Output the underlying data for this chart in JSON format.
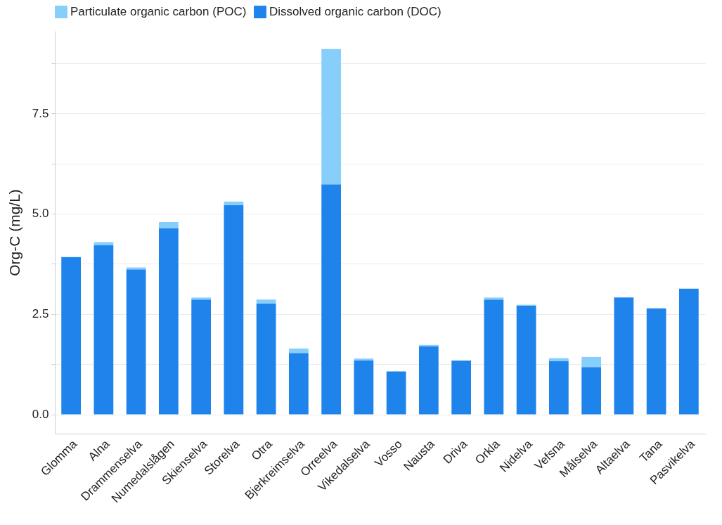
{
  "chart_data": {
    "type": "bar",
    "stacked": true,
    "ylabel": "Org-C (mg/L)",
    "categories": [
      "Glomma",
      "Alna",
      "Drammenselva",
      "Numedalslågen",
      "Skienselva",
      "Storelva",
      "Otra",
      "Bjerkreimselva",
      "Orreelva",
      "Vikedalselva",
      "Vosso",
      "Nausta",
      "Driva",
      "Orkla",
      "Nidelva",
      "Vefsna",
      "Målselva",
      "Altaelva",
      "Tana",
      "Pasvikelva"
    ],
    "series": [
      {
        "name": "Dissolved organic carbon (DOC)",
        "color": "#1e84ec",
        "values": [
          3.92,
          4.21,
          3.61,
          4.64,
          2.86,
          5.21,
          2.76,
          1.53,
          5.73,
          1.34,
          1.07,
          1.7,
          1.34,
          2.86,
          2.71,
          1.33,
          1.18,
          2.91,
          2.64,
          3.13
        ]
      },
      {
        "name": "Particulate organic carbon (POC)",
        "color": "#87cefa",
        "values": [
          0,
          0.08,
          0.05,
          0.15,
          0.05,
          0.09,
          0.1,
          0.11,
          3.37,
          0.05,
          0,
          0.03,
          0,
          0.05,
          0.02,
          0.07,
          0.25,
          0,
          0,
          0
        ]
      }
    ],
    "ylim": [
      -0.48,
      9.55
    ],
    "yticks": [
      {
        "value": 0,
        "label": "0.0"
      },
      {
        "value": 1.25,
        "label": null
      },
      {
        "value": 2.5,
        "label": "2.5"
      },
      {
        "value": 3.75,
        "label": null
      },
      {
        "value": 5,
        "label": "5.0"
      },
      {
        "value": 6.25,
        "label": null
      },
      {
        "value": 7.5,
        "label": "7.5"
      },
      {
        "value": 8.75,
        "label": null
      }
    ],
    "grid": "y",
    "legend": "top"
  }
}
